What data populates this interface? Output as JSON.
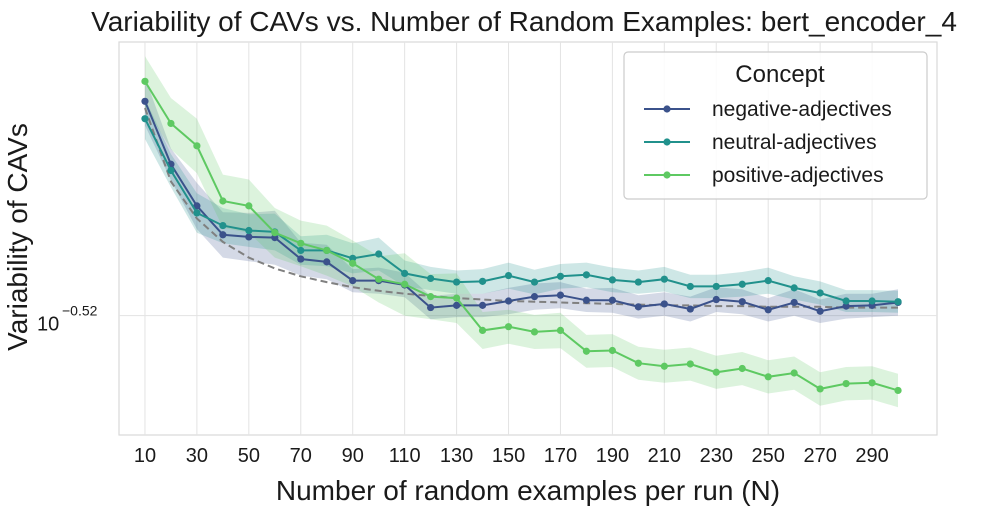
{
  "chart_data": {
    "type": "line",
    "title": "Variability of CAVs vs. Number of Random Examples: bert_encoder_4",
    "xlabel": "Number of random examples per run (N)",
    "ylabel": "Variability of CAVs",
    "yscale": "log",
    "grid": true,
    "legend_position": "top-right",
    "legend_title": "Concept",
    "x": [
      10,
      20,
      30,
      40,
      50,
      60,
      70,
      80,
      90,
      100,
      110,
      120,
      130,
      140,
      150,
      160,
      170,
      180,
      190,
      200,
      210,
      220,
      230,
      240,
      250,
      260,
      270,
      280,
      290,
      300
    ],
    "x_ticks": [
      10,
      30,
      50,
      70,
      90,
      110,
      130,
      150,
      170,
      190,
      210,
      230,
      250,
      270,
      290
    ],
    "x_tick_labels": [
      "10",
      "30",
      "50",
      "70",
      "90",
      "110",
      "130",
      "150",
      "170",
      "190",
      "210",
      "230",
      "250",
      "270",
      "290"
    ],
    "y_ticks": [
      {
        "value": 0.302,
        "exponent": "−0.52"
      }
    ],
    "xlim": [
      0,
      315
    ],
    "ylim": [
      0.2862,
      0.3416
    ],
    "series": [
      {
        "name": "negative-adjectives",
        "color": "#3b528b",
        "values": [
          0.3326,
          0.3233,
          0.3173,
          0.3132,
          0.3129,
          0.3128,
          0.3098,
          0.3094,
          0.3068,
          0.3068,
          0.3062,
          0.3031,
          0.3034,
          0.3034,
          0.304,
          0.3046,
          0.3048,
          0.3041,
          0.3041,
          0.3032,
          0.3036,
          0.3029,
          0.3042,
          0.3039,
          0.3028,
          0.3038,
          0.3026,
          0.3033,
          0.3034,
          0.3038
        ],
        "lower": [
          0.329,
          0.321,
          0.314,
          0.31,
          0.3095,
          0.309,
          0.3075,
          0.307,
          0.3052,
          0.305,
          0.3045,
          0.3015,
          0.3018,
          0.3018,
          0.3022,
          0.3028,
          0.303,
          0.3025,
          0.3024,
          0.3016,
          0.302,
          0.3012,
          0.3025,
          0.3022,
          0.3012,
          0.302,
          0.301,
          0.3016,
          0.3018,
          0.302
        ],
        "upper": [
          0.3362,
          0.3256,
          0.3206,
          0.3164,
          0.3163,
          0.3166,
          0.3121,
          0.3118,
          0.3084,
          0.3086,
          0.3079,
          0.3047,
          0.305,
          0.305,
          0.3058,
          0.3064,
          0.3066,
          0.3057,
          0.3058,
          0.3048,
          0.3052,
          0.3046,
          0.3059,
          0.3056,
          0.3044,
          0.3056,
          0.3042,
          0.305,
          0.305,
          0.3056
        ]
      },
      {
        "name": "neutral-adjectives",
        "color": "#21918c",
        "values": [
          0.33,
          0.3224,
          0.3163,
          0.3145,
          0.3138,
          0.3136,
          0.311,
          0.311,
          0.3099,
          0.3105,
          0.3078,
          0.3071,
          0.3066,
          0.3067,
          0.3075,
          0.3066,
          0.3074,
          0.3076,
          0.3069,
          0.3066,
          0.307,
          0.306,
          0.306,
          0.3063,
          0.3068,
          0.3058,
          0.3051,
          0.304,
          0.304,
          0.3039
        ],
        "lower": [
          0.327,
          0.32,
          0.3135,
          0.312,
          0.3115,
          0.311,
          0.309,
          0.3088,
          0.3078,
          0.3082,
          0.306,
          0.3055,
          0.305,
          0.305,
          0.3057,
          0.3049,
          0.3057,
          0.3059,
          0.3052,
          0.305,
          0.3053,
          0.3044,
          0.3044,
          0.3046,
          0.305,
          0.3042,
          0.3035,
          0.3025,
          0.3025,
          0.3024
        ],
        "upper": [
          0.333,
          0.3248,
          0.3191,
          0.317,
          0.3161,
          0.3162,
          0.313,
          0.3132,
          0.312,
          0.3128,
          0.3096,
          0.3087,
          0.3082,
          0.3084,
          0.3093,
          0.3083,
          0.3091,
          0.3093,
          0.3086,
          0.3082,
          0.3087,
          0.3076,
          0.3076,
          0.308,
          0.3086,
          0.3074,
          0.3067,
          0.3055,
          0.3055,
          0.3054
        ]
      },
      {
        "name": "positive-adjectives",
        "color": "#5ec962",
        "values": [
          0.3356,
          0.3293,
          0.326,
          0.318,
          0.3173,
          0.3135,
          0.312,
          0.311,
          0.3092,
          0.307,
          0.3063,
          0.3046,
          0.3044,
          0.3,
          0.3005,
          0.2998,
          0.3,
          0.2972,
          0.2973,
          0.2956,
          0.2952,
          0.2955,
          0.2944,
          0.2949,
          0.2938,
          0.2943,
          0.2922,
          0.2929,
          0.293,
          0.292
        ],
        "lower": [
          0.3318,
          0.3255,
          0.322,
          0.3142,
          0.3135,
          0.31,
          0.3088,
          0.3075,
          0.306,
          0.3038,
          0.302,
          0.3015,
          0.301,
          0.2975,
          0.2982,
          0.2975,
          0.2976,
          0.295,
          0.2951,
          0.2934,
          0.293,
          0.2933,
          0.2922,
          0.2927,
          0.2916,
          0.2921,
          0.29,
          0.2907,
          0.2908,
          0.2898
        ],
        "upper": [
          0.3394,
          0.3331,
          0.33,
          0.3218,
          0.3211,
          0.317,
          0.3152,
          0.3145,
          0.3124,
          0.3102,
          0.3106,
          0.3077,
          0.3078,
          0.3025,
          0.3028,
          0.3021,
          0.3024,
          0.2994,
          0.2995,
          0.2978,
          0.2974,
          0.2977,
          0.2966,
          0.2971,
          0.296,
          0.2965,
          0.2944,
          0.2951,
          0.2952,
          0.2942
        ]
      }
    ],
    "reference_curve": {
      "style": "dashed",
      "color": "#808080",
      "values": [
        0.3316,
        0.3208,
        0.3155,
        0.3122,
        0.31,
        0.3085,
        0.3074,
        0.3066,
        0.3059,
        0.3054,
        0.305,
        0.3047,
        0.3044,
        0.3042,
        0.304,
        0.3039,
        0.3038,
        0.3037,
        0.3036,
        0.3035,
        0.3034,
        0.3034,
        0.3033,
        0.3033,
        0.3032,
        0.3032,
        0.3032,
        0.3031,
        0.3031,
        0.3031
      ]
    }
  }
}
